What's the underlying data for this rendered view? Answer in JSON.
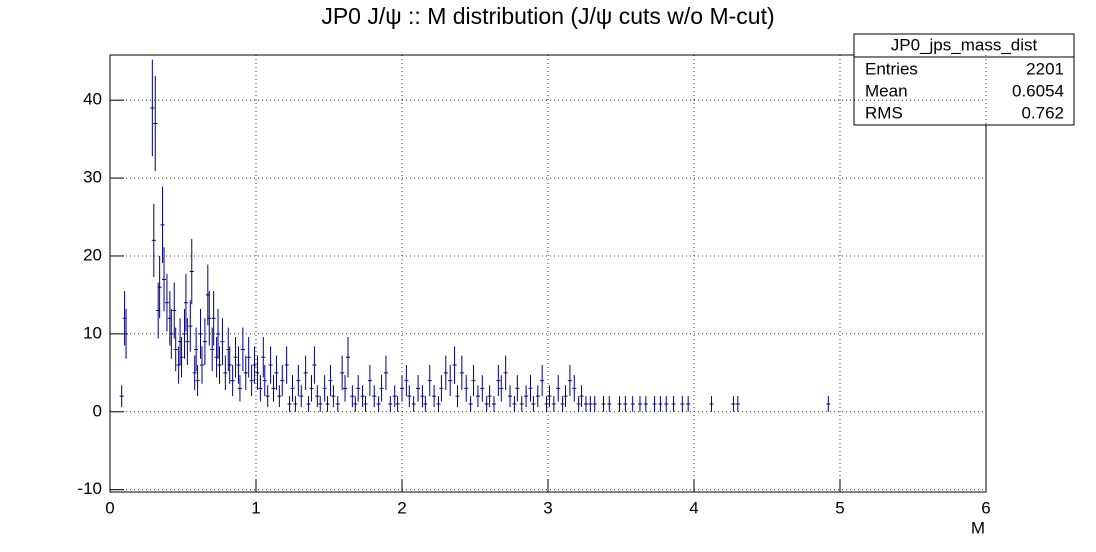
{
  "chart_data": {
    "type": "errorbar",
    "title": "JP0 J/ψ :: M distribution (J/ψ cuts w/o M-cut)",
    "x_label": "M",
    "xlim": [
      0,
      6
    ],
    "xticks": [
      0,
      1,
      2,
      3,
      4,
      5,
      6
    ],
    "ylim": [
      -10.3,
      45.8
    ],
    "yticks": [
      -10,
      0,
      10,
      20,
      30,
      40
    ],
    "grid": true,
    "x": [
      0.08,
      0.1,
      0.11,
      0.29,
      0.3,
      0.31,
      0.33,
      0.34,
      0.36,
      0.37,
      0.39,
      0.41,
      0.42,
      0.44,
      0.45,
      0.47,
      0.48,
      0.49,
      0.51,
      0.52,
      0.53,
      0.55,
      0.56,
      0.58,
      0.59,
      0.6,
      0.62,
      0.63,
      0.65,
      0.67,
      0.68,
      0.7,
      0.71,
      0.73,
      0.74,
      0.75,
      0.77,
      0.79,
      0.81,
      0.82,
      0.84,
      0.86,
      0.88,
      0.89,
      0.91,
      0.93,
      0.95,
      0.97,
      0.99,
      1.01,
      1.03,
      1.05,
      1.06,
      1.08,
      1.1,
      1.12,
      1.14,
      1.16,
      1.18,
      1.21,
      1.23,
      1.25,
      1.27,
      1.29,
      1.31,
      1.34,
      1.36,
      1.38,
      1.4,
      1.42,
      1.44,
      1.47,
      1.49,
      1.51,
      1.53,
      1.56,
      1.59,
      1.61,
      1.63,
      1.66,
      1.68,
      1.7,
      1.73,
      1.75,
      1.78,
      1.81,
      1.84,
      1.86,
      1.89,
      1.92,
      1.95,
      1.97,
      2.0,
      2.03,
      2.05,
      2.08,
      2.11,
      2.14,
      2.16,
      2.19,
      2.22,
      2.25,
      2.27,
      2.3,
      2.33,
      2.36,
      2.38,
      2.41,
      2.44,
      2.47,
      2.49,
      2.52,
      2.55,
      2.58,
      2.6,
      2.63,
      2.66,
      2.68,
      2.71,
      2.74,
      2.77,
      2.79,
      2.82,
      2.85,
      2.88,
      2.9,
      2.93,
      2.96,
      2.99,
      3.01,
      3.04,
      3.07,
      3.1,
      3.12,
      3.15,
      3.18,
      3.21,
      3.23,
      3.26,
      3.29,
      3.32,
      3.38,
      3.42,
      3.49,
      3.53,
      3.58,
      3.63,
      3.67,
      3.73,
      3.77,
      3.81,
      3.86,
      3.92,
      3.96,
      4.12,
      4.27,
      4.3,
      4.92
    ],
    "series": [
      {
        "color": "#000080",
        "values": [
          2,
          12,
          10,
          39,
          22,
          37,
          13,
          16,
          24,
          17,
          14,
          12,
          10,
          13,
          8,
          6,
          9,
          7,
          10,
          14,
          9,
          11,
          18,
          5,
          8,
          4,
          10,
          6,
          9,
          15,
          12,
          8,
          12,
          7,
          10,
          6,
          9,
          5,
          8,
          6,
          4,
          7,
          6,
          3,
          8,
          5,
          7,
          4,
          6,
          5,
          3,
          7,
          4,
          2,
          6,
          3,
          5,
          2,
          4,
          6,
          1,
          3,
          1,
          4,
          2,
          5,
          1,
          3,
          6,
          2,
          1,
          3,
          1,
          4,
          2,
          1,
          5,
          3,
          7,
          2,
          1,
          3,
          2,
          1,
          4,
          2,
          1,
          3,
          5,
          1,
          2,
          1,
          3,
          4,
          2,
          1,
          3,
          2,
          1,
          4,
          2,
          1,
          3,
          5,
          4,
          6,
          2,
          5,
          3,
          1,
          4,
          2,
          3,
          1,
          2,
          1,
          4,
          3,
          5,
          2,
          1,
          3,
          1,
          2,
          3,
          1,
          2,
          4,
          1,
          2,
          1,
          3,
          1,
          2,
          4,
          3,
          1,
          2,
          1,
          1,
          1,
          1,
          1,
          1,
          1,
          1,
          1,
          1,
          1,
          1,
          1,
          1,
          1,
          1,
          1,
          1,
          1,
          1
        ],
        "errors": [
          1.4,
          3.5,
          3.2,
          6.2,
          4.7,
          6.1,
          3.6,
          4,
          4.9,
          4.1,
          3.7,
          3.5,
          3.2,
          3.6,
          2.8,
          2.4,
          3,
          2.6,
          3.2,
          3.7,
          3,
          3.3,
          4.2,
          2.2,
          2.8,
          2,
          3.2,
          2.4,
          3,
          3.9,
          3.5,
          2.8,
          3.5,
          2.6,
          3.2,
          2.4,
          3,
          2.2,
          2.8,
          2.4,
          2,
          2.6,
          2.4,
          1.7,
          2.8,
          2.2,
          2.6,
          2,
          2.4,
          2.2,
          1.7,
          2.6,
          2,
          1.4,
          2.4,
          1.7,
          2.2,
          1.4,
          2,
          2.4,
          1,
          1.7,
          1,
          2,
          1.4,
          2.2,
          1,
          1.7,
          2.4,
          1.4,
          1,
          1.7,
          1,
          2,
          1.4,
          1,
          2.2,
          1.7,
          2.6,
          1.4,
          1,
          1.7,
          1.4,
          1,
          2,
          1.4,
          1,
          1.7,
          2.2,
          1,
          1.4,
          1,
          1.7,
          2,
          1.4,
          1,
          1.7,
          1.4,
          1,
          2,
          1.4,
          1,
          1.7,
          2.2,
          2,
          2.4,
          1.4,
          2.2,
          1.7,
          1,
          2,
          1.4,
          1.7,
          1,
          1.4,
          1,
          2,
          1.7,
          2.2,
          1.4,
          1,
          1.7,
          1,
          1.4,
          1.7,
          1,
          1.4,
          2,
          1,
          1.4,
          1,
          1.7,
          1,
          1.4,
          2,
          1.7,
          1,
          1.4,
          1,
          1,
          1,
          1,
          1,
          1,
          1,
          1,
          1,
          1,
          1,
          1,
          1,
          1,
          1,
          1,
          1,
          1,
          1,
          1
        ]
      }
    ],
    "stats_title": "JP0_jps_mass_dist",
    "stats": [
      {
        "label": "Entries",
        "value": 2201
      },
      {
        "label": "Mean",
        "value": 0.6054
      },
      {
        "label": "RMS",
        "value": 0.762
      }
    ]
  }
}
